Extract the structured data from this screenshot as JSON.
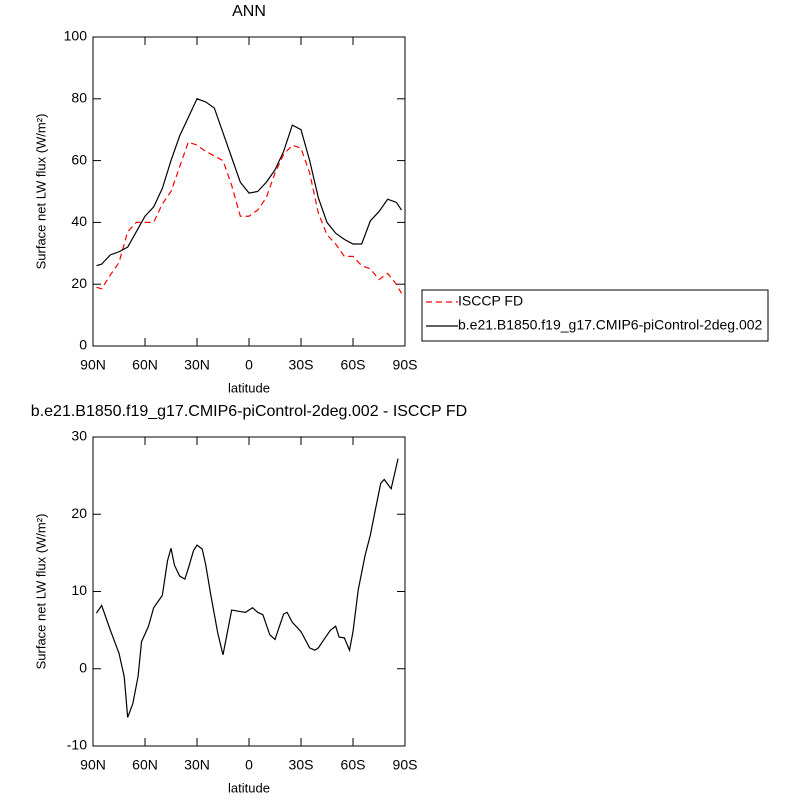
{
  "chart_data": [
    {
      "type": "line",
      "title": "ANN",
      "xlabel": "latitude",
      "ylabel": "Surface net LW flux (W/m²)",
      "xlim": [
        90,
        -90
      ],
      "ylim": [
        0,
        100
      ],
      "xticks": [
        {
          "value": 90,
          "label": "90N"
        },
        {
          "value": 60,
          "label": "60N"
        },
        {
          "value": 30,
          "label": "30N"
        },
        0,
        {
          "value": -30,
          "label": "30S"
        },
        {
          "value": -60,
          "label": "60S"
        },
        {
          "value": -90,
          "label": "90S"
        }
      ],
      "yticks": [
        0,
        20,
        40,
        60,
        80,
        100
      ],
      "legend": "right",
      "x": [
        88,
        85,
        80,
        75,
        70,
        65,
        60,
        55,
        50,
        45,
        40,
        35,
        30,
        25,
        20,
        15,
        10,
        5,
        0,
        -5,
        -10,
        -15,
        -20,
        -25,
        -30,
        -35,
        -40,
        -45,
        -50,
        -55,
        -60,
        -65,
        -70,
        -75,
        -80,
        -85,
        -88
      ],
      "series": [
        {
          "name": "ISCCP FD",
          "color": "#ff0000",
          "dash": true,
          "values": [
            19,
            18.5,
            23,
            27,
            37,
            40,
            40,
            40,
            46,
            50,
            58,
            66,
            65,
            63,
            61.5,
            60,
            52,
            42,
            42,
            44,
            48,
            56,
            62,
            65,
            64,
            56,
            43,
            36,
            33,
            29,
            29,
            26,
            25,
            21.5,
            23.5,
            20,
            17
          ]
        },
        {
          "name": "b.e21.B1850.f19_g17.CMIP6-piControl-2deg.002",
          "color": "#000000",
          "dash": false,
          "values": [
            26,
            26.5,
            29.5,
            30.5,
            32,
            37,
            42,
            45,
            51,
            60,
            68,
            74,
            80,
            79,
            77,
            69,
            61,
            53,
            49.5,
            50,
            53,
            57,
            63,
            71.5,
            70,
            60,
            48,
            40,
            36.5,
            34.5,
            33,
            33,
            40.5,
            43.5,
            47.5,
            46.5,
            44
          ]
        }
      ]
    },
    {
      "type": "line",
      "title": "b.e21.B1850.f19_g17.CMIP6-piControl-2deg.002 - ISCCP FD",
      "xlabel": "latitude",
      "ylabel": "Surface net LW flux (W/m²)",
      "xlim": [
        90,
        -90
      ],
      "ylim": [
        -10,
        30
      ],
      "xticks": [
        {
          "value": 90,
          "label": "90N"
        },
        {
          "value": 60,
          "label": "60N"
        },
        {
          "value": 30,
          "label": "30N"
        },
        0,
        {
          "value": -30,
          "label": "30S"
        },
        {
          "value": -60,
          "label": "60S"
        },
        {
          "value": -90,
          "label": "90S"
        }
      ],
      "yticks": [
        -10,
        0,
        10,
        20,
        30
      ],
      "x": [
        88,
        85,
        80,
        75,
        72,
        70,
        67,
        64,
        62,
        58,
        55,
        50,
        47,
        45,
        43,
        40,
        37,
        35,
        32,
        30,
        27,
        25,
        22,
        18,
        15,
        10,
        5,
        2,
        -2,
        -5,
        -8,
        -12,
        -15,
        -20,
        -22,
        -25,
        -28,
        -30,
        -35,
        -38,
        -40,
        -43,
        -47,
        -50,
        -52,
        -55,
        -58,
        -60,
        -63,
        -67,
        -70,
        -73,
        -76,
        -78,
        -82,
        -86
      ],
      "series": [
        {
          "color": "#000000",
          "dash": false,
          "values": [
            7.2,
            8.2,
            5,
            2,
            -1,
            -6.3,
            -4.5,
            -1,
            3.5,
            5.5,
            7.9,
            9.5,
            14,
            15.6,
            13.4,
            12,
            11.6,
            13,
            15.3,
            16,
            15.5,
            13.5,
            9.5,
            4.6,
            1.8,
            7.6,
            7.4,
            7.3,
            7.9,
            7.3,
            7,
            4.4,
            3.8,
            7.1,
            7.3,
            6,
            5.3,
            4.8,
            2.7,
            2.4,
            2.7,
            3.7,
            5,
            5.5,
            4.1,
            4,
            2.4,
            4.8,
            10.2,
            14.7,
            17.3,
            20.7,
            24,
            24.5,
            23.3,
            27.2
          ]
        }
      ]
    }
  ]
}
